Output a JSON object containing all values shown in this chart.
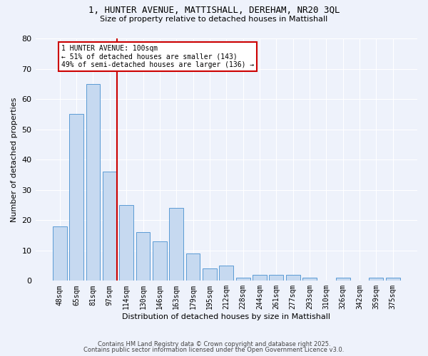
{
  "title1": "1, HUNTER AVENUE, MATTISHALL, DEREHAM, NR20 3QL",
  "title2": "Size of property relative to detached houses in Mattishall",
  "xlabel": "Distribution of detached houses by size in Mattishall",
  "ylabel": "Number of detached properties",
  "bar_labels": [
    "48sqm",
    "65sqm",
    "81sqm",
    "97sqm",
    "114sqm",
    "130sqm",
    "146sqm",
    "163sqm",
    "179sqm",
    "195sqm",
    "212sqm",
    "228sqm",
    "244sqm",
    "261sqm",
    "277sqm",
    "293sqm",
    "310sqm",
    "326sqm",
    "342sqm",
    "359sqm",
    "375sqm"
  ],
  "bar_values": [
    18,
    55,
    65,
    36,
    25,
    16,
    13,
    24,
    9,
    4,
    5,
    1,
    2,
    2,
    2,
    1,
    0,
    1,
    0,
    1,
    1
  ],
  "bar_color": "#c6d9f0",
  "bar_edge_color": "#5b9bd5",
  "red_line_index": 3,
  "annotation_text": "1 HUNTER AVENUE: 100sqm\n← 51% of detached houses are smaller (143)\n49% of semi-detached houses are larger (136) →",
  "annotation_box_color": "#ffffff",
  "annotation_border_color": "#cc0000",
  "footer1": "Contains HM Land Registry data © Crown copyright and database right 2025.",
  "footer2": "Contains public sector information licensed under the Open Government Licence v3.0.",
  "background_color": "#eef2fb",
  "ylim": [
    0,
    80
  ],
  "yticks": [
    0,
    10,
    20,
    30,
    40,
    50,
    60,
    70,
    80
  ]
}
